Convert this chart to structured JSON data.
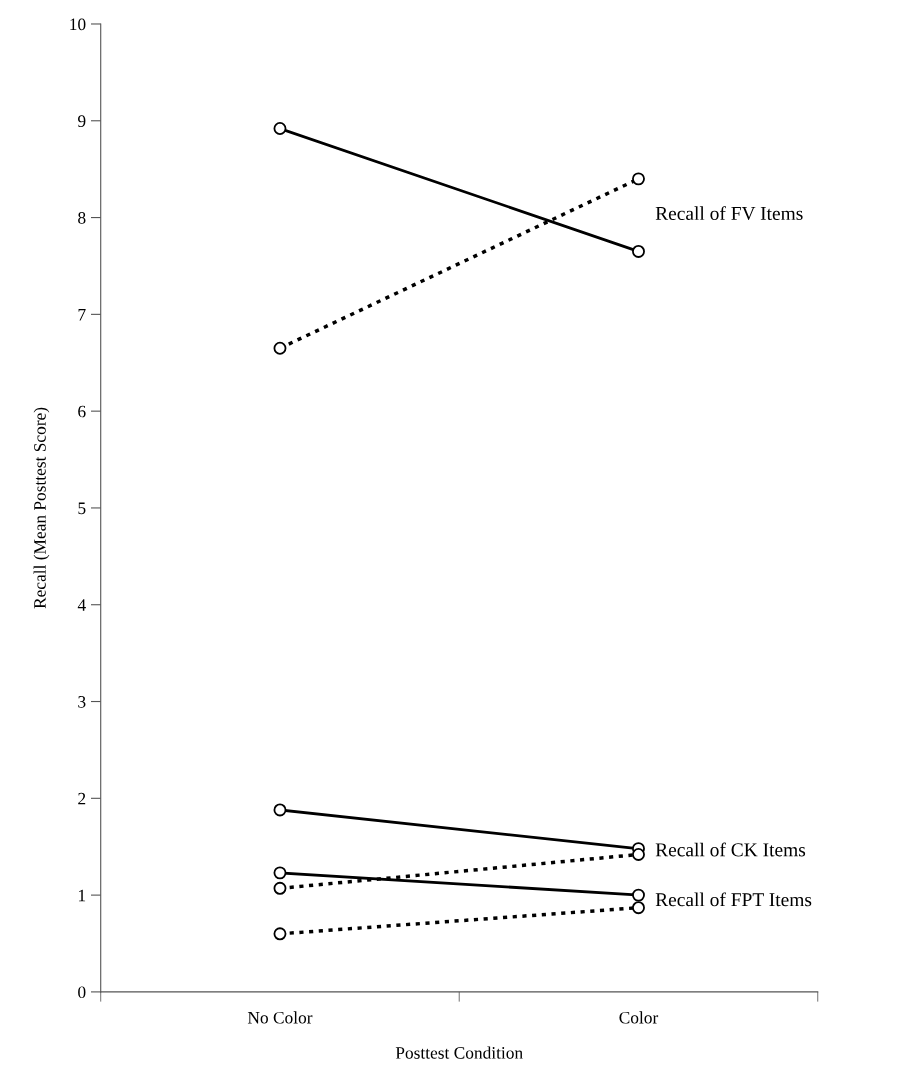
{
  "chart_data": {
    "type": "line",
    "xlabel": "Posttest Condition",
    "ylabel": "Recall (Mean Posttest Score)",
    "categories": [
      "No Color",
      "Color"
    ],
    "series": [
      {
        "color": "#000000",
        "line_style": "solid",
        "values": [
          8.92,
          7.65
        ]
      },
      {
        "color": "#000000",
        "line_style": "dotted",
        "values": [
          6.65,
          8.4
        ]
      },
      {
        "color": "#000000",
        "line_style": "solid",
        "values": [
          1.88,
          1.48
        ]
      },
      {
        "color": "#000000",
        "line_style": "dotted",
        "values": [
          1.07,
          1.42
        ]
      },
      {
        "color": "#000000",
        "line_style": "solid",
        "values": [
          1.23,
          1.0
        ]
      },
      {
        "color": "#000000",
        "line_style": "dotted",
        "values": [
          0.6,
          0.87
        ]
      }
    ],
    "annotations": [
      "Recall of FV Items",
      "Recall of CK Items",
      "Recall of FPT Items"
    ],
    "ylim": [
      0,
      10
    ],
    "yticks": [
      0,
      1,
      2,
      3,
      4,
      5,
      6,
      7,
      8,
      9,
      10
    ],
    "marker": "circle",
    "grid": false
  }
}
